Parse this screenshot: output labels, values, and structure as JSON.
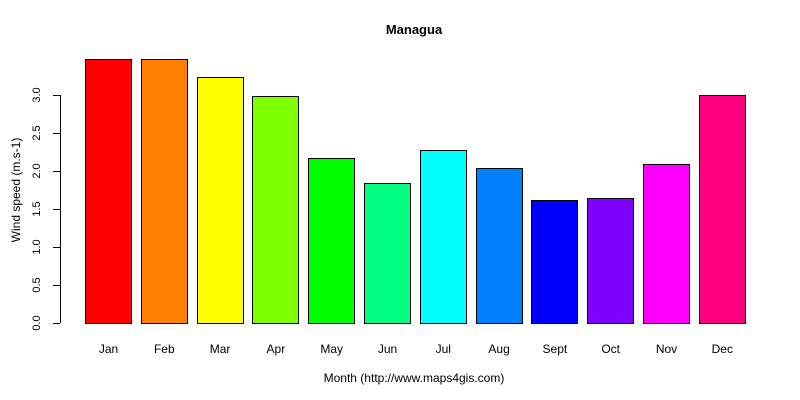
{
  "chart_data": {
    "type": "bar",
    "title": "Managua",
    "xlabel": "Month (http://www.maps4gis.com)",
    "ylabel": "Wind speed (m.s-1)",
    "categories": [
      "Jan",
      "Feb",
      "Mar",
      "Apr",
      "May",
      "Jun",
      "Jul",
      "Aug",
      "Sept",
      "Oct",
      "Nov",
      "Dec"
    ],
    "values": [
      3.47,
      3.47,
      3.24,
      2.99,
      2.17,
      1.84,
      2.28,
      2.04,
      1.62,
      1.64,
      2.09,
      3.0
    ],
    "colors": [
      "#FF0000",
      "#FF8000",
      "#FFFF00",
      "#80FF00",
      "#00FF00",
      "#00FF80",
      "#00FFFF",
      "#0080FF",
      "#0000FF",
      "#8000FF",
      "#FF00FF",
      "#FF0080"
    ],
    "yticks": [
      "0.0",
      "0.5",
      "1.0",
      "1.5",
      "2.0",
      "2.5",
      "3.0"
    ],
    "ylim": [
      0,
      3.5
    ],
    "grid": false,
    "legend": null
  }
}
